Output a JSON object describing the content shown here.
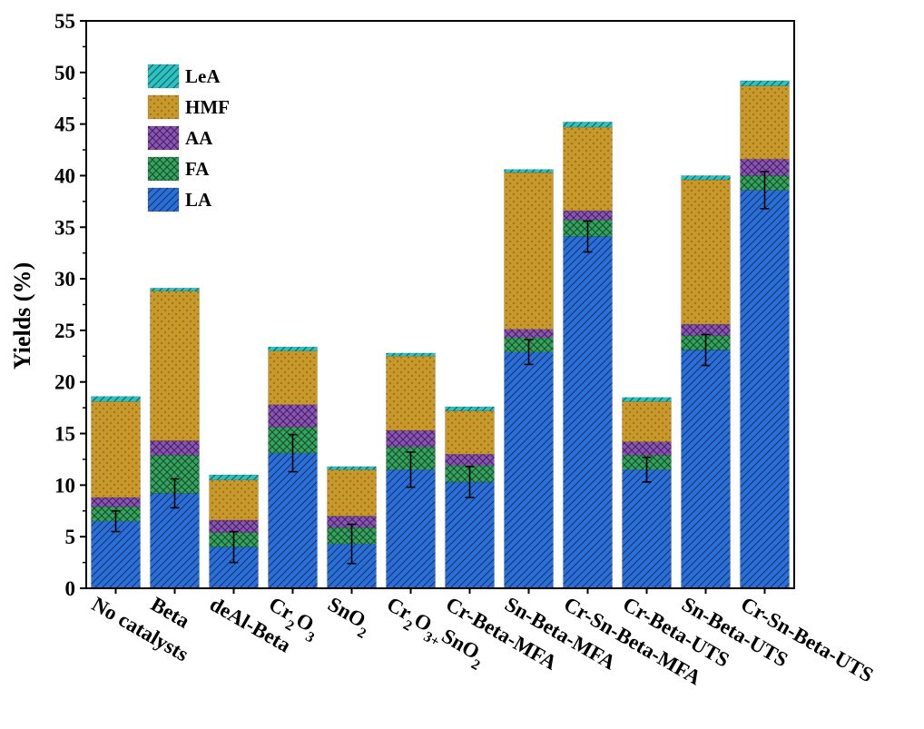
{
  "chart_data": {
    "type": "bar",
    "stacked": true,
    "title": "",
    "xlabel": "",
    "ylabel": "Yields (%)",
    "ylim": [
      0,
      55
    ],
    "yticks": [
      0,
      5,
      10,
      15,
      20,
      25,
      30,
      35,
      40,
      45,
      50,
      55
    ],
    "grid": false,
    "legend_position": "top-left",
    "categories": [
      {
        "label": "No catalysts",
        "sub": null
      },
      {
        "label": "Beta",
        "sub": null
      },
      {
        "label": "deAl-Beta",
        "sub": null
      },
      {
        "label": "Cr2O3",
        "parts": [
          [
            "Cr",
            false
          ],
          [
            "2",
            true
          ],
          [
            "O",
            false
          ],
          [
            "3",
            true
          ]
        ]
      },
      {
        "label": "SnO2",
        "parts": [
          [
            "SnO",
            false
          ],
          [
            "2",
            true
          ]
        ]
      },
      {
        "label": "Cr2O3+SnO2",
        "parts": [
          [
            "Cr",
            false
          ],
          [
            "2",
            true
          ],
          [
            "O",
            false
          ],
          [
            "3+",
            true
          ],
          [
            "SnO",
            false
          ],
          [
            "2",
            true
          ]
        ]
      },
      {
        "label": "Cr-Beta-MFA",
        "sub": null
      },
      {
        "label": "Sn-Beta-MFA",
        "sub": null
      },
      {
        "label": "Cr-Sn-Beta-MFA",
        "sub": null
      },
      {
        "label": "Cr-Beta-UTS",
        "sub": null
      },
      {
        "label": "Sn-Beta-UTS",
        "sub": null
      },
      {
        "label": "Cr-Sn-Beta-UTS",
        "sub": null
      }
    ],
    "series": [
      {
        "name": "LA",
        "color": "#2a6fd9",
        "pattern": "diagonal",
        "values": [
          6.5,
          9.2,
          4.0,
          13.1,
          4.3,
          11.5,
          10.3,
          22.9,
          34.1,
          11.5,
          23.1,
          38.6
        ]
      },
      {
        "name": "FA",
        "color": "#33a35e",
        "pattern": "crosshatch",
        "values": [
          1.4,
          3.7,
          1.4,
          2.5,
          1.6,
          2.2,
          1.6,
          1.4,
          1.6,
          1.4,
          1.4,
          1.4
        ]
      },
      {
        "name": "AA",
        "color": "#8b52b8",
        "pattern": "crosshatch",
        "values": [
          0.9,
          1.4,
          1.2,
          2.2,
          1.1,
          1.6,
          1.1,
          0.8,
          0.9,
          1.3,
          1.1,
          1.6
        ]
      },
      {
        "name": "HMF",
        "color": "#c9982a",
        "pattern": "dots",
        "values": [
          9.3,
          14.5,
          3.9,
          5.2,
          4.5,
          7.2,
          4.2,
          15.2,
          8.1,
          3.9,
          14.0,
          7.1
        ]
      },
      {
        "name": "LeA",
        "color": "#2bc2c2",
        "pattern": "hatch",
        "values": [
          0.5,
          0.3,
          0.5,
          0.4,
          0.3,
          0.3,
          0.4,
          0.3,
          0.5,
          0.4,
          0.4,
          0.5
        ]
      }
    ],
    "error_bars_on": "LA",
    "error_bars": [
      1.0,
      1.4,
      1.5,
      1.8,
      1.9,
      1.7,
      1.5,
      1.2,
      1.5,
      1.2,
      1.5,
      1.8
    ]
  }
}
